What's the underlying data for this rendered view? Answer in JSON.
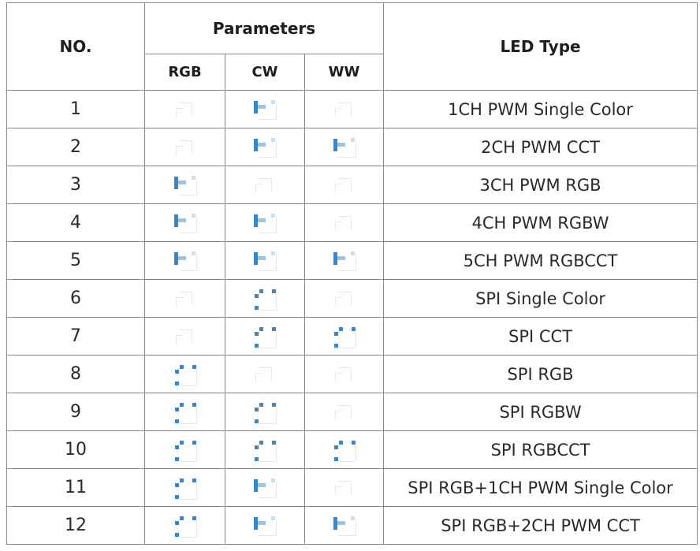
{
  "table": {
    "headers": {
      "no": "NO.",
      "parameters": "Parameters",
      "led_type": "LED Type",
      "sub": [
        "RGB",
        "CW",
        "WW"
      ]
    },
    "icon_legend": {
      "pwm": "pwm-channel-icon",
      "spi": "spi-channel-icon",
      "none": "not-supported-icon"
    },
    "colors": {
      "accent_blue": "#3a86c8",
      "accent_light": "#9cc4e6",
      "border": "#8a8a8a"
    },
    "rows": [
      {
        "no": "1",
        "rgb": "none",
        "cw": "pwm",
        "ww": "none",
        "led_type": "1CH PWM Single Color"
      },
      {
        "no": "2",
        "rgb": "none",
        "cw": "pwm",
        "ww": "pwm",
        "led_type": "2CH PWM CCT"
      },
      {
        "no": "3",
        "rgb": "pwm",
        "cw": "none",
        "ww": "none",
        "led_type": "3CH PWM RGB"
      },
      {
        "no": "4",
        "rgb": "pwm",
        "cw": "pwm",
        "ww": "none",
        "led_type": "4CH PWM RGBW"
      },
      {
        "no": "5",
        "rgb": "pwm",
        "cw": "pwm",
        "ww": "pwm",
        "led_type": "5CH PWM RGBCCT"
      },
      {
        "no": "6",
        "rgb": "none",
        "cw": "spi",
        "ww": "none",
        "led_type": "SPI Single Color"
      },
      {
        "no": "7",
        "rgb": "none",
        "cw": "spi",
        "ww": "spi",
        "led_type": "SPI CCT"
      },
      {
        "no": "8",
        "rgb": "spi",
        "cw": "none",
        "ww": "none",
        "led_type": "SPI RGB"
      },
      {
        "no": "9",
        "rgb": "spi",
        "cw": "spi",
        "ww": "none",
        "led_type": "SPI RGBW"
      },
      {
        "no": "10",
        "rgb": "spi",
        "cw": "spi",
        "ww": "spi",
        "led_type": "SPI RGBCCT"
      },
      {
        "no": "11",
        "rgb": "spi",
        "cw": "pwm",
        "ww": "none",
        "led_type": "SPI RGB+1CH PWM Single Color"
      },
      {
        "no": "12",
        "rgb": "spi",
        "cw": "pwm",
        "ww": "pwm",
        "led_type": "SPI RGB+2CH PWM CCT"
      }
    ]
  }
}
